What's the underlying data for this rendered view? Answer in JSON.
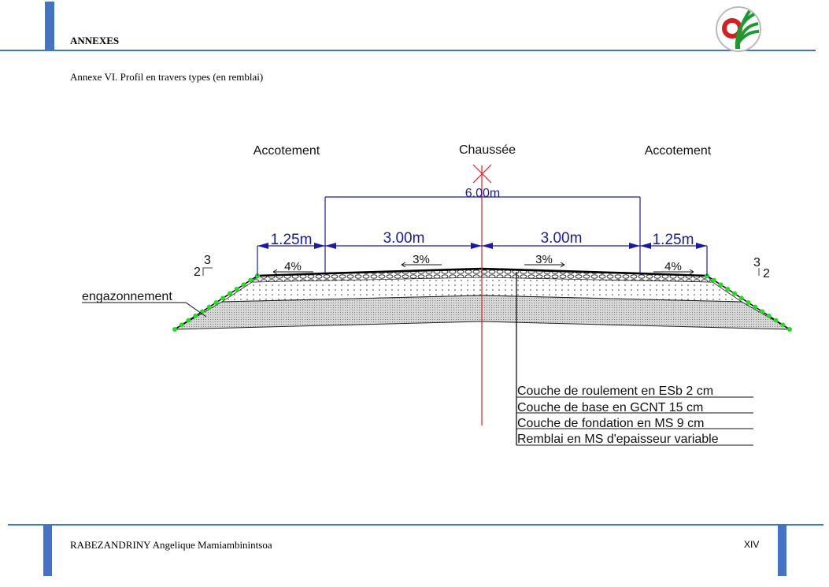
{
  "header": {
    "section": "ANNEXES",
    "logo": "school-emblem-logo"
  },
  "caption": "Annexe VI. Profil en travers types  (en remblai)",
  "diagram": {
    "zones": {
      "left": "Accotement",
      "center": "Chaussée",
      "right": "Accotement"
    },
    "total_width": "6.00m",
    "widths": [
      "1.25m",
      "3.00m",
      "3.00m",
      "1.25m"
    ],
    "slopes": [
      "4%",
      "3%",
      "3%",
      "4%"
    ],
    "talus_left": {
      "h": "2",
      "v": "3"
    },
    "talus_right": {
      "v": "3",
      "h": "2"
    },
    "engazonnement": "engazonnement",
    "layers": [
      "Couche de roulement en ESb 2 cm",
      "Couche de base en GCNT 15 cm",
      "Couche de fondation en MS 9 cm",
      "Remblai en MS d'epaisseur variable"
    ],
    "colors": {
      "dimension": "#1a1aa8",
      "axis": "#e02020",
      "grass": "#22dd22"
    }
  },
  "footer": {
    "author": "RABEZANDRINY Angelique Mamiambinintsoa",
    "page": "XIV"
  }
}
